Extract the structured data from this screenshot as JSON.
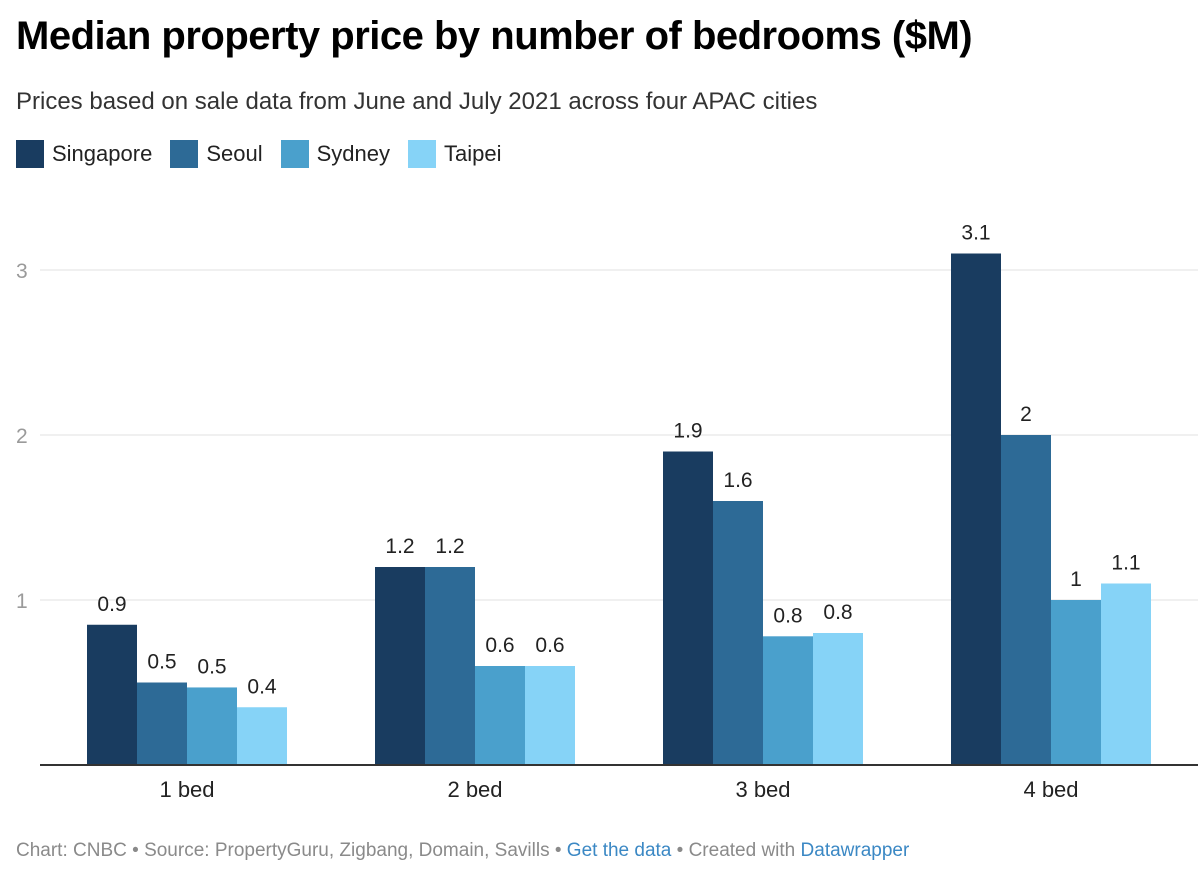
{
  "title": "Median property price by number of bedrooms ($M)",
  "subtitle": "Prices based on sale data from June and July 2021 across four APAC cities",
  "legend": [
    {
      "name": "Singapore",
      "color": "#193c60"
    },
    {
      "name": "Seoul",
      "color": "#2d6a96"
    },
    {
      "name": "Sydney",
      "color": "#4aa0cc"
    },
    {
      "name": "Taipei",
      "color": "#86d3f7"
    }
  ],
  "chart_data": {
    "type": "bar",
    "categories": [
      "1 bed",
      "2 bed",
      "3 bed",
      "4 bed"
    ],
    "series": [
      {
        "name": "Singapore",
        "color": "#193c60",
        "values": [
          0.85,
          1.2,
          1.9,
          3.1
        ],
        "labels": [
          "0.9",
          "1.2",
          "1.9",
          "3.1"
        ]
      },
      {
        "name": "Seoul",
        "color": "#2d6a96",
        "values": [
          0.5,
          1.2,
          1.6,
          2.0
        ],
        "labels": [
          "0.5",
          "1.2",
          "1.6",
          "2"
        ]
      },
      {
        "name": "Sydney",
        "color": "#4aa0cc",
        "values": [
          0.47,
          0.6,
          0.78,
          1.0
        ],
        "labels": [
          "0.5",
          "0.6",
          "0.8",
          "1"
        ]
      },
      {
        "name": "Taipei",
        "color": "#86d3f7",
        "values": [
          0.35,
          0.6,
          0.8,
          1.1
        ],
        "labels": [
          "0.4",
          "0.6",
          "0.8",
          "1.1"
        ]
      }
    ],
    "yticks": [
      1,
      2,
      3
    ],
    "ytick_labels": [
      "1",
      "2",
      "3"
    ],
    "ylim": [
      0,
      3.3
    ],
    "grid": true
  },
  "footer": {
    "credit": "Chart: CNBC • Source: PropertyGuru, Zigbang, Domain, Savills • ",
    "get_data": "Get the data",
    "created_with": " • Created with ",
    "datawrapper": "Datawrapper"
  }
}
